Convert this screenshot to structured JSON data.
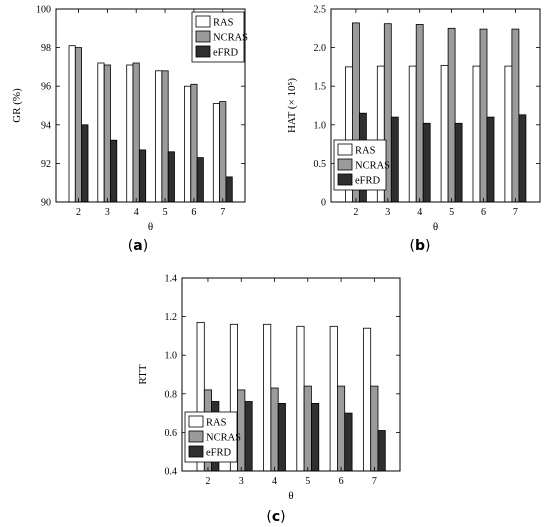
{
  "colors": {
    "RAS": "#ffffff",
    "NCRAS": "#9b9b9b",
    "eFRD": "#2f2f2f"
  },
  "chart_data": [
    {
      "type": "bar",
      "panel": "(a)",
      "panel_letter": "a",
      "xlabel": "θ",
      "ylabel": "GR (%)",
      "categories": [
        "2",
        "3",
        "4",
        "5",
        "6",
        "7"
      ],
      "ylim": [
        90,
        100
      ],
      "yticks": [
        "90",
        "92",
        "94",
        "96",
        "98",
        "100"
      ],
      "ytick_values": [
        90,
        92,
        94,
        96,
        98,
        100
      ],
      "legend": "top-right",
      "series": [
        {
          "name": "RAS",
          "values": [
            98.1,
            97.2,
            97.1,
            96.8,
            96.0,
            95.1
          ]
        },
        {
          "name": "NCRAS",
          "values": [
            98.0,
            97.1,
            97.2,
            96.8,
            96.1,
            95.2
          ]
        },
        {
          "name": "eFRD",
          "values": [
            94.0,
            93.2,
            92.7,
            92.6,
            92.3,
            91.3
          ]
        }
      ]
    },
    {
      "type": "bar",
      "panel": "(b)",
      "panel_letter": "b",
      "xlabel": "θ",
      "ylabel": "HAT (× 10⁵)",
      "categories": [
        "2",
        "3",
        "4",
        "5",
        "6",
        "7"
      ],
      "ylim": [
        0,
        2.5
      ],
      "yticks": [
        "0",
        "0.5",
        "1.0",
        "1.5",
        "2.0",
        "2.5"
      ],
      "ytick_values": [
        0,
        0.5,
        1.0,
        1.5,
        2.0,
        2.5
      ],
      "legend": "bottom-left",
      "series": [
        {
          "name": "RAS",
          "values": [
            1.75,
            1.76,
            1.76,
            1.77,
            1.76,
            1.76
          ]
        },
        {
          "name": "NCRAS",
          "values": [
            2.32,
            2.31,
            2.3,
            2.25,
            2.24,
            2.24
          ]
        },
        {
          "name": "eFRD",
          "values": [
            1.15,
            1.1,
            1.02,
            1.02,
            1.1,
            1.13
          ]
        }
      ]
    },
    {
      "type": "bar",
      "panel": "(c)",
      "panel_letter": "c",
      "xlabel": "θ",
      "ylabel": "RTT",
      "categories": [
        "2",
        "3",
        "4",
        "5",
        "6",
        "7"
      ],
      "ylim": [
        0.4,
        1.4
      ],
      "yticks": [
        "0.4",
        "0.6",
        "0.8",
        "1.0",
        "1.2",
        "1.4"
      ],
      "ytick_values": [
        0.4,
        0.6,
        0.8,
        1.0,
        1.2,
        1.4
      ],
      "legend": "bottom-left",
      "series": [
        {
          "name": "RAS",
          "values": [
            1.17,
            1.16,
            1.16,
            1.15,
            1.15,
            1.14
          ]
        },
        {
          "name": "NCRAS",
          "values": [
            0.82,
            0.82,
            0.83,
            0.84,
            0.84,
            0.84
          ]
        },
        {
          "name": "eFRD",
          "values": [
            0.76,
            0.76,
            0.75,
            0.75,
            0.7,
            0.61
          ]
        }
      ]
    }
  ]
}
